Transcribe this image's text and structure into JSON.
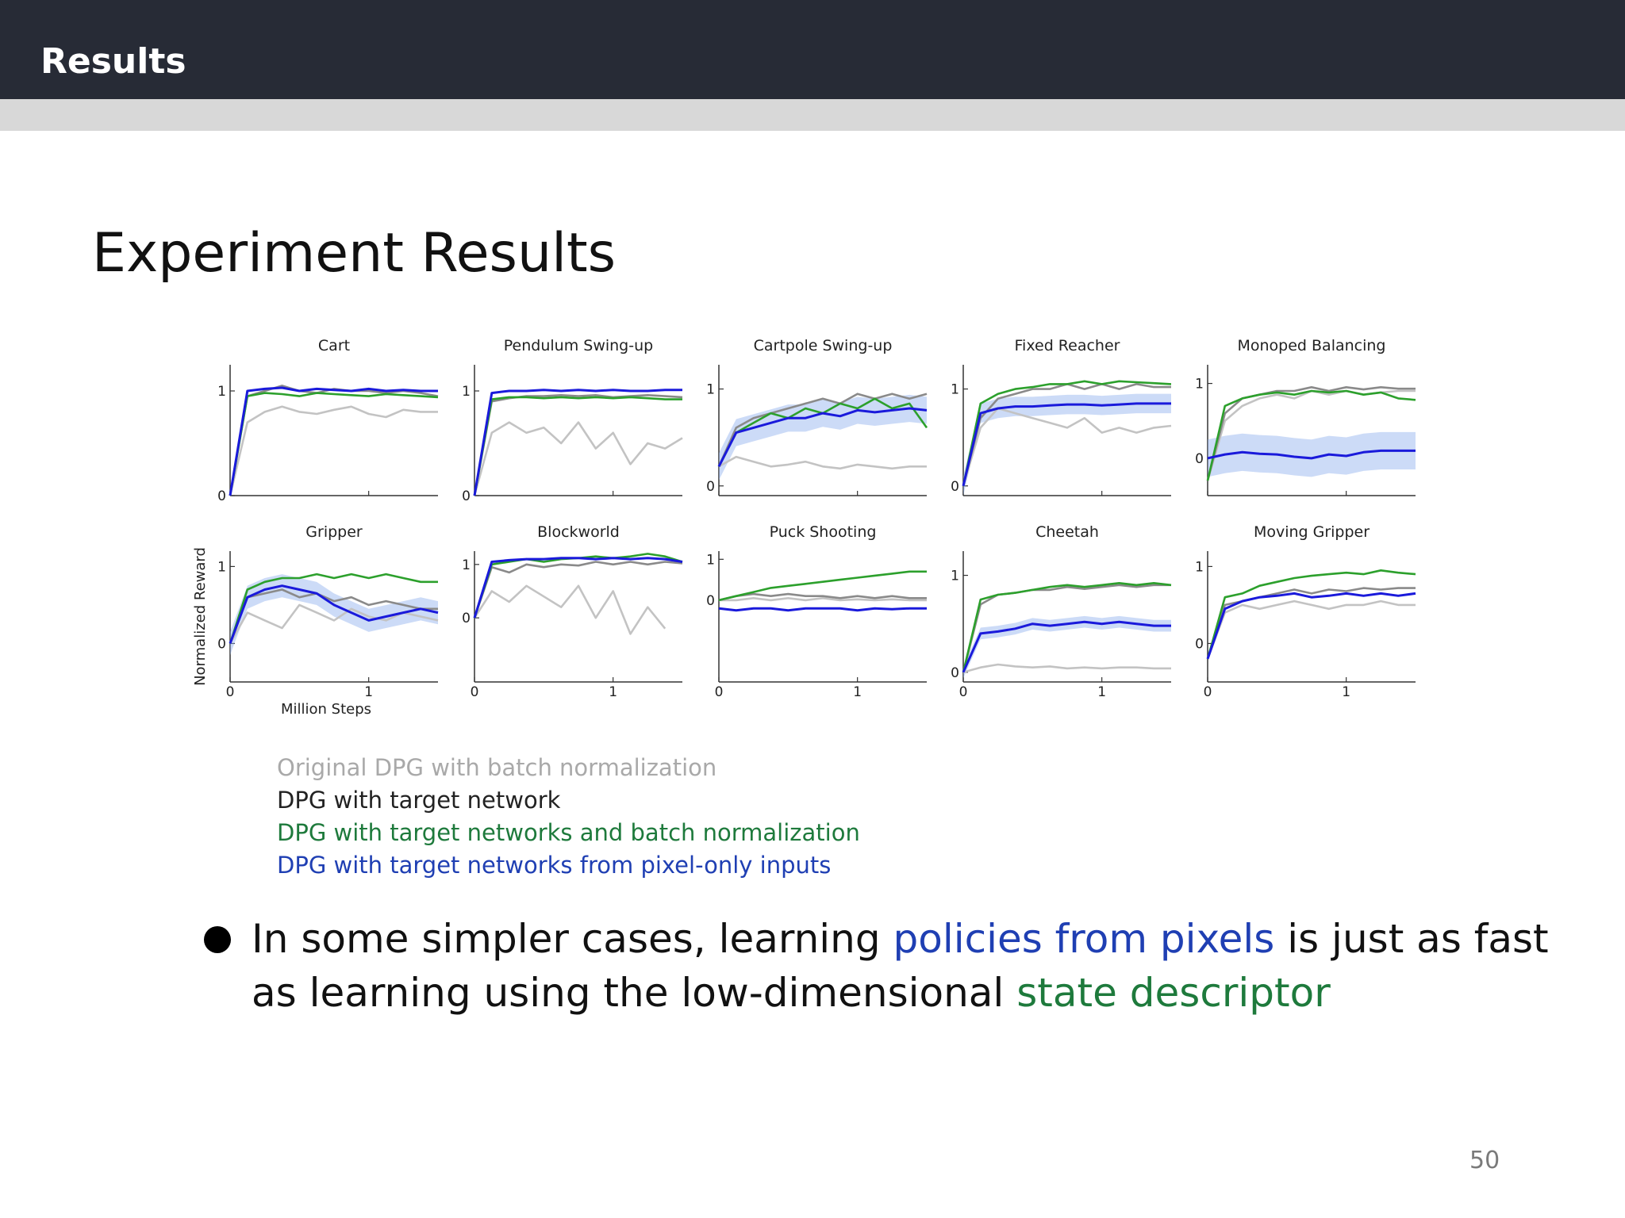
{
  "header": {
    "title": "Results"
  },
  "slide": {
    "heading": "Experiment Results",
    "page_number": "50"
  },
  "legend": [
    {
      "label": "Original DPG with batch normalization",
      "color": "#a9a9a9"
    },
    {
      "label": "DPG with target network",
      "color": "#222222"
    },
    {
      "label": "DPG with target networks and batch normalization",
      "color": "#1e7a3c"
    },
    {
      "label": "DPG with target networks from pixel-only inputs",
      "color": "#1f3fb3"
    }
  ],
  "bullet": {
    "part1": "In some simpler cases, learning ",
    "highlight1": "policies from pixels",
    "part2": " is just as fast as learning using the low-dimensional ",
    "highlight2": "state descriptor",
    "highlight1_color": "#1f3fb3",
    "highlight2_color": "#1e7a3c"
  },
  "chart_data": {
    "type": "line",
    "ylabel": "Normalized Reward",
    "xlabel": "Million Steps",
    "xlim": [
      0,
      1.5
    ],
    "x_ticks": [
      "0",
      "1"
    ],
    "series_styles": [
      {
        "key": "orig_bn",
        "color": "#c3c3c3"
      },
      {
        "key": "target",
        "color": "#8a8a8a"
      },
      {
        "key": "target_bn",
        "color": "#2ca02c"
      },
      {
        "key": "pixels",
        "color": "#1a1adb",
        "band_color": "#8fb0ee"
      }
    ],
    "panels": [
      {
        "title": "Cart",
        "ylim": [
          0,
          1.25
        ],
        "y_ticks": [
          0,
          1
        ],
        "show_x_ticks": false,
        "orig_bn": [
          0.0,
          0.7,
          0.8,
          0.85,
          0.8,
          0.78,
          0.82,
          0.85,
          0.78,
          0.75,
          0.82,
          0.8,
          0.8
        ],
        "target": [
          0.0,
          0.95,
          1.0,
          1.05,
          1.0,
          0.98,
          1.02,
          1.0,
          1.0,
          0.98,
          1.0,
          0.98,
          0.95
        ],
        "target_bn": [
          0.0,
          0.95,
          0.98,
          0.97,
          0.95,
          0.98,
          0.97,
          0.96,
          0.95,
          0.97,
          0.96,
          0.95,
          0.94
        ],
        "pixels": [
          0.0,
          1.0,
          1.02,
          1.03,
          1.0,
          1.02,
          1.01,
          1.0,
          1.02,
          1.0,
          1.01,
          1.0,
          1.0
        ]
      },
      {
        "title": "Pendulum Swing-up",
        "ylim": [
          0,
          1.25
        ],
        "y_ticks": [
          0,
          1
        ],
        "show_x_ticks": false,
        "orig_bn": [
          0.0,
          0.6,
          0.7,
          0.6,
          0.65,
          0.5,
          0.7,
          0.45,
          0.6,
          0.3,
          0.5,
          0.45,
          0.55
        ],
        "target": [
          0.0,
          0.9,
          0.93,
          0.95,
          0.95,
          0.96,
          0.95,
          0.96,
          0.94,
          0.95,
          0.96,
          0.95,
          0.94
        ],
        "target_bn": [
          0.0,
          0.92,
          0.94,
          0.94,
          0.93,
          0.94,
          0.93,
          0.94,
          0.93,
          0.94,
          0.93,
          0.92,
          0.92
        ],
        "pixels": [
          0.0,
          0.98,
          1.0,
          1.0,
          1.01,
          1.0,
          1.01,
          1.0,
          1.01,
          1.0,
          1.0,
          1.01,
          1.01
        ]
      },
      {
        "title": "Cartpole Swing-up",
        "ylim": [
          -0.1,
          1.25
        ],
        "y_ticks": [
          0,
          1
        ],
        "show_x_ticks": false,
        "orig_bn": [
          0.2,
          0.3,
          0.25,
          0.2,
          0.22,
          0.25,
          0.2,
          0.18,
          0.22,
          0.2,
          0.18,
          0.2,
          0.2
        ],
        "target": [
          0.2,
          0.6,
          0.7,
          0.75,
          0.8,
          0.85,
          0.9,
          0.85,
          0.95,
          0.9,
          0.95,
          0.9,
          0.95
        ],
        "target_bn": [
          0.2,
          0.55,
          0.65,
          0.75,
          0.7,
          0.8,
          0.75,
          0.85,
          0.8,
          0.9,
          0.8,
          0.85,
          0.6
        ],
        "pixels": [
          0.2,
          0.55,
          0.6,
          0.65,
          0.7,
          0.7,
          0.75,
          0.72,
          0.78,
          0.76,
          0.78,
          0.8,
          0.78
        ],
        "pixels_band": 0.14
      },
      {
        "title": "Fixed Reacher",
        "ylim": [
          -0.1,
          1.25
        ],
        "y_ticks": [
          0,
          1
        ],
        "show_x_ticks": false,
        "orig_bn": [
          0.0,
          0.6,
          0.8,
          0.75,
          0.7,
          0.65,
          0.6,
          0.7,
          0.55,
          0.6,
          0.55,
          0.6,
          0.62
        ],
        "target": [
          0.0,
          0.7,
          0.9,
          0.95,
          1.0,
          1.0,
          1.05,
          1.0,
          1.05,
          1.0,
          1.05,
          1.02,
          1.02
        ],
        "target_bn": [
          0.0,
          0.85,
          0.95,
          1.0,
          1.02,
          1.05,
          1.05,
          1.08,
          1.05,
          1.08,
          1.07,
          1.06,
          1.05
        ],
        "pixels": [
          0.0,
          0.75,
          0.8,
          0.82,
          0.82,
          0.83,
          0.84,
          0.84,
          0.83,
          0.84,
          0.85,
          0.85,
          0.85
        ],
        "pixels_band": 0.1
      },
      {
        "title": "Monoped Balancing",
        "ylim": [
          -0.5,
          1.25
        ],
        "y_ticks": [
          0,
          1
        ],
        "show_x_ticks": false,
        "orig_bn": [
          -0.3,
          0.5,
          0.7,
          0.8,
          0.85,
          0.8,
          0.9,
          0.85,
          0.9,
          0.85,
          0.88,
          0.9,
          0.9
        ],
        "target": [
          -0.3,
          0.6,
          0.8,
          0.85,
          0.9,
          0.9,
          0.95,
          0.9,
          0.95,
          0.92,
          0.95,
          0.93,
          0.93
        ],
        "target_bn": [
          -0.3,
          0.7,
          0.8,
          0.85,
          0.88,
          0.85,
          0.9,
          0.88,
          0.9,
          0.85,
          0.88,
          0.8,
          0.78
        ],
        "pixels": [
          0.0,
          0.05,
          0.08,
          0.06,
          0.05,
          0.02,
          0.0,
          0.05,
          0.03,
          0.08,
          0.1,
          0.1,
          0.1
        ],
        "pixels_band": 0.25
      },
      {
        "title": "Gripper",
        "ylim": [
          -0.5,
          1.2
        ],
        "y_ticks": [
          0,
          1
        ],
        "show_x_ticks": true,
        "orig_bn": [
          0.0,
          0.4,
          0.3,
          0.2,
          0.5,
          0.4,
          0.3,
          0.45,
          0.35,
          0.3,
          0.4,
          0.35,
          0.3
        ],
        "target": [
          0.0,
          0.6,
          0.65,
          0.7,
          0.6,
          0.65,
          0.55,
          0.6,
          0.5,
          0.55,
          0.5,
          0.45,
          0.45
        ],
        "target_bn": [
          0.0,
          0.7,
          0.8,
          0.85,
          0.85,
          0.9,
          0.85,
          0.9,
          0.85,
          0.9,
          0.85,
          0.8,
          0.8
        ],
        "pixels": [
          0.0,
          0.6,
          0.7,
          0.75,
          0.7,
          0.65,
          0.5,
          0.4,
          0.3,
          0.35,
          0.4,
          0.45,
          0.4
        ],
        "pixels_band": 0.15
      },
      {
        "title": "Blockworld",
        "ylim": [
          -1.2,
          1.25
        ],
        "y_ticks": [
          0,
          1
        ],
        "show_x_ticks": true,
        "orig_bn": [
          0.0,
          0.5,
          0.3,
          0.6,
          0.4,
          0.2,
          0.6,
          0.0,
          0.5,
          -0.3,
          0.2,
          -0.2,
          null
        ],
        "target": [
          0.0,
          0.95,
          0.85,
          1.0,
          0.95,
          1.0,
          0.98,
          1.05,
          1.0,
          1.05,
          1.0,
          1.05,
          1.02
        ],
        "target_bn": [
          0.0,
          1.0,
          1.05,
          1.1,
          1.05,
          1.1,
          1.12,
          1.15,
          1.12,
          1.15,
          1.2,
          1.15,
          1.05
        ],
        "pixels": [
          0.0,
          1.05,
          1.08,
          1.1,
          1.1,
          1.12,
          1.12,
          1.1,
          1.12,
          1.1,
          1.12,
          1.1,
          1.05
        ]
      },
      {
        "title": "Puck Shooting",
        "ylim": [
          -2.0,
          1.2
        ],
        "y_ticks": [
          0,
          1
        ],
        "show_x_ticks": true,
        "orig_bn": [
          0.0,
          0.0,
          0.05,
          0.0,
          0.05,
          0.0,
          0.05,
          0.0,
          0.02,
          0.0,
          0.02,
          0.0,
          0.0
        ],
        "target": [
          0.0,
          0.1,
          0.15,
          0.1,
          0.15,
          0.1,
          0.1,
          0.05,
          0.1,
          0.05,
          0.1,
          0.05,
          0.05
        ],
        "target_bn": [
          0.0,
          0.1,
          0.2,
          0.3,
          0.35,
          0.4,
          0.45,
          0.5,
          0.55,
          0.6,
          0.65,
          0.7,
          0.7
        ],
        "pixels": [
          -0.2,
          -0.25,
          -0.2,
          -0.2,
          -0.25,
          -0.2,
          -0.2,
          -0.2,
          -0.25,
          -0.2,
          -0.22,
          -0.2,
          -0.2
        ]
      },
      {
        "title": "Cheetah",
        "ylim": [
          -0.1,
          1.25
        ],
        "y_ticks": [
          0,
          1
        ],
        "show_x_ticks": true,
        "orig_bn": [
          0.0,
          0.05,
          0.08,
          0.06,
          0.05,
          0.06,
          0.04,
          0.05,
          0.04,
          0.05,
          0.05,
          0.04,
          0.04
        ],
        "target": [
          0.0,
          0.7,
          0.8,
          0.82,
          0.85,
          0.85,
          0.88,
          0.86,
          0.88,
          0.9,
          0.88,
          0.9,
          0.9
        ],
        "target_bn": [
          0.0,
          0.75,
          0.8,
          0.82,
          0.85,
          0.88,
          0.9,
          0.88,
          0.9,
          0.92,
          0.9,
          0.92,
          0.9
        ],
        "pixels": [
          0.0,
          0.4,
          0.42,
          0.45,
          0.5,
          0.48,
          0.5,
          0.52,
          0.5,
          0.52,
          0.5,
          0.48,
          0.48
        ],
        "pixels_band": 0.06
      },
      {
        "title": "Moving Gripper",
        "ylim": [
          -0.5,
          1.2
        ],
        "y_ticks": [
          0,
          1
        ],
        "show_x_ticks": true,
        "orig_bn": [
          -0.2,
          0.4,
          0.5,
          0.45,
          0.5,
          0.55,
          0.5,
          0.45,
          0.5,
          0.5,
          0.55,
          0.5,
          0.5
        ],
        "target": [
          -0.2,
          0.5,
          0.55,
          0.6,
          0.65,
          0.7,
          0.65,
          0.7,
          0.68,
          0.72,
          0.7,
          0.72,
          0.72
        ],
        "target_bn": [
          -0.2,
          0.6,
          0.65,
          0.75,
          0.8,
          0.85,
          0.88,
          0.9,
          0.92,
          0.9,
          0.95,
          0.92,
          0.9
        ],
        "pixels": [
          -0.2,
          0.45,
          0.55,
          0.6,
          0.62,
          0.65,
          0.6,
          0.62,
          0.65,
          0.62,
          0.65,
          0.62,
          0.65
        ]
      }
    ]
  }
}
